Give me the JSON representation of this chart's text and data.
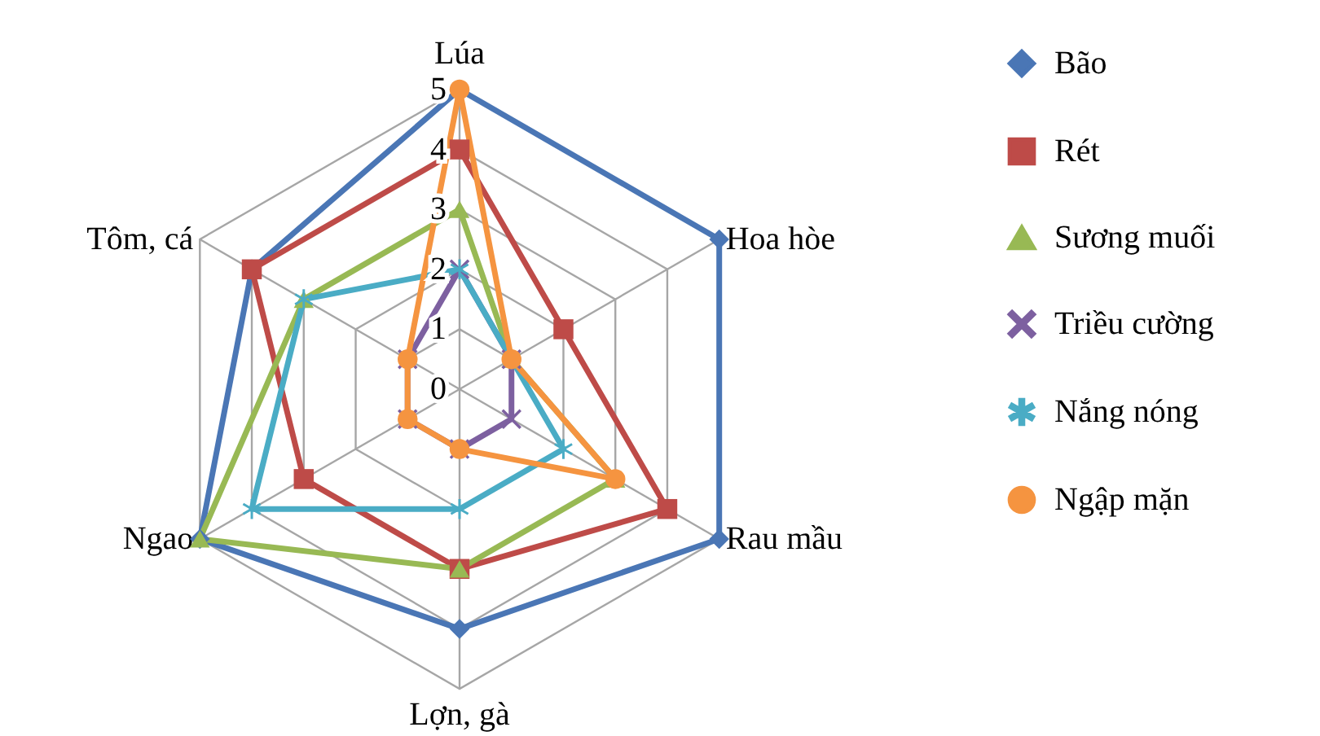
{
  "chart_data": {
    "type": "radar",
    "categories": [
      "Lúa",
      "Hoa hòe",
      "Rau mầu",
      "Lợn, gà",
      "Ngao",
      "Tôm, cá"
    ],
    "ylim": [
      0,
      5
    ],
    "yticks": [
      0,
      1,
      2,
      3,
      4,
      5
    ],
    "grid": true,
    "legend": "right",
    "series": [
      {
        "name": "Bão",
        "color": "#4a76b5",
        "marker": "diamond",
        "values": [
          5,
          5,
          5,
          4,
          5,
          4
        ]
      },
      {
        "name": "Rét",
        "color": "#be4b48",
        "marker": "square",
        "values": [
          4,
          2,
          4,
          3,
          3,
          4
        ]
      },
      {
        "name": "Sương muối",
        "color": "#98b954",
        "marker": "triangle",
        "values": [
          3,
          1,
          3,
          3,
          5,
          3
        ]
      },
      {
        "name": "Triều cường",
        "color": "#7d60a0",
        "marker": "cross",
        "values": [
          2,
          1,
          1,
          1,
          1,
          1
        ]
      },
      {
        "name": "Nắng nóng",
        "color": "#4aacc5",
        "marker": "star",
        "values": [
          2,
          1,
          2,
          2,
          4,
          3
        ]
      },
      {
        "name": "Ngập mặn",
        "color": "#f59440",
        "marker": "circle",
        "values": [
          5,
          1,
          3,
          1,
          1,
          1
        ]
      }
    ]
  }
}
